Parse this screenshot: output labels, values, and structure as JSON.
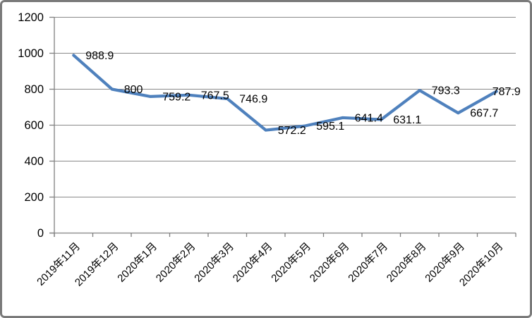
{
  "chart_data": {
    "type": "line",
    "title": "",
    "xlabel": "",
    "ylabel": "",
    "categories": [
      "2019年11月",
      "2019年12月",
      "2020年1月",
      "2020年2月",
      "2020年3月",
      "2020年4月",
      "2020年5月",
      "2020年6月",
      "2020年7月",
      "2020年8月",
      "2020年9月",
      "2020年10月"
    ],
    "values": [
      988.9,
      800,
      759.2,
      767.5,
      746.9,
      572.2,
      595.1,
      641.4,
      631.1,
      793.3,
      667.7,
      787.9
    ],
    "point_labels": [
      "988.9",
      "800",
      "759.2",
      "767.5",
      "746.9",
      "572.2",
      "595.1",
      "641.4",
      "631.1",
      "793.3",
      "667.7",
      "787.9"
    ],
    "ylim": [
      0,
      1200
    ],
    "ytick_step": 200,
    "ytick_labels": [
      "0",
      "200",
      "400",
      "600",
      "800",
      "1000",
      "1200"
    ],
    "grid": true,
    "legend": "none",
    "colors": {
      "series_line": "#4f81bd",
      "gridline": "#898989",
      "axis": "#808080",
      "text": "#000000",
      "frame_border": "#7a7a7a",
      "background": "#ffffff"
    }
  }
}
